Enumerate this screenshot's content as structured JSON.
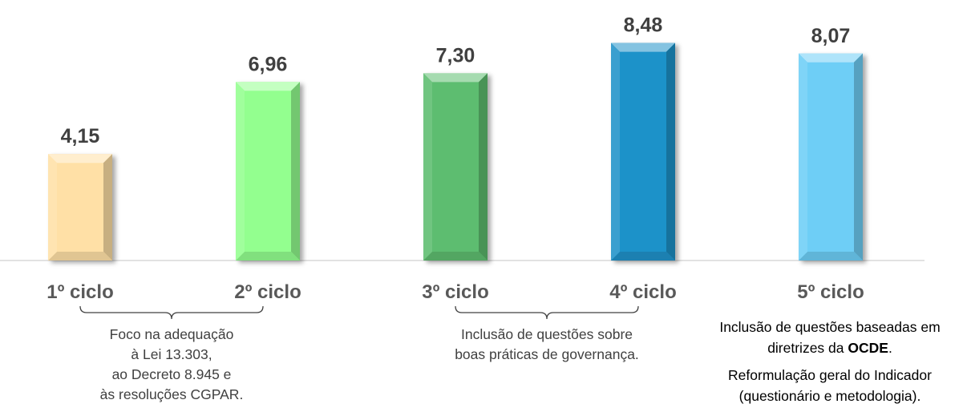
{
  "chart_data": {
    "type": "bar",
    "categories": [
      "1º ciclo",
      "2º ciclo",
      "3º ciclo",
      "4º ciclo",
      "5º ciclo"
    ],
    "values": [
      4.15,
      6.96,
      7.3,
      8.48,
      8.07
    ],
    "data_labels": [
      "4,15",
      "6,96",
      "7,30",
      "8,48",
      "8,07"
    ],
    "colors": [
      "#FFE0A6",
      "#93FF8F",
      "#5DBD6F",
      "#1F92C9",
      "#6ECEF6"
    ],
    "title": "",
    "xlabel": "",
    "ylabel": "",
    "ylim": [
      0,
      10
    ],
    "grid": false,
    "legend": "none"
  },
  "annotations": {
    "group_1_2": [
      "Foco na adequação",
      "à Lei 13.303,",
      "ao Decreto 8.945 e",
      "às resoluções CGPAR."
    ],
    "group_3_4": [
      "Inclusão de questões sobre",
      "boas práticas de governança."
    ],
    "cycle_5": {
      "line1": "Inclusão de questões baseadas em",
      "line2_prefix": "diretrizes da ",
      "line2_bold": "OCDE",
      "line2_suffix": ".",
      "line3": "Reformulação geral do Indicador",
      "line4": "(questionário e metodologia)."
    }
  }
}
